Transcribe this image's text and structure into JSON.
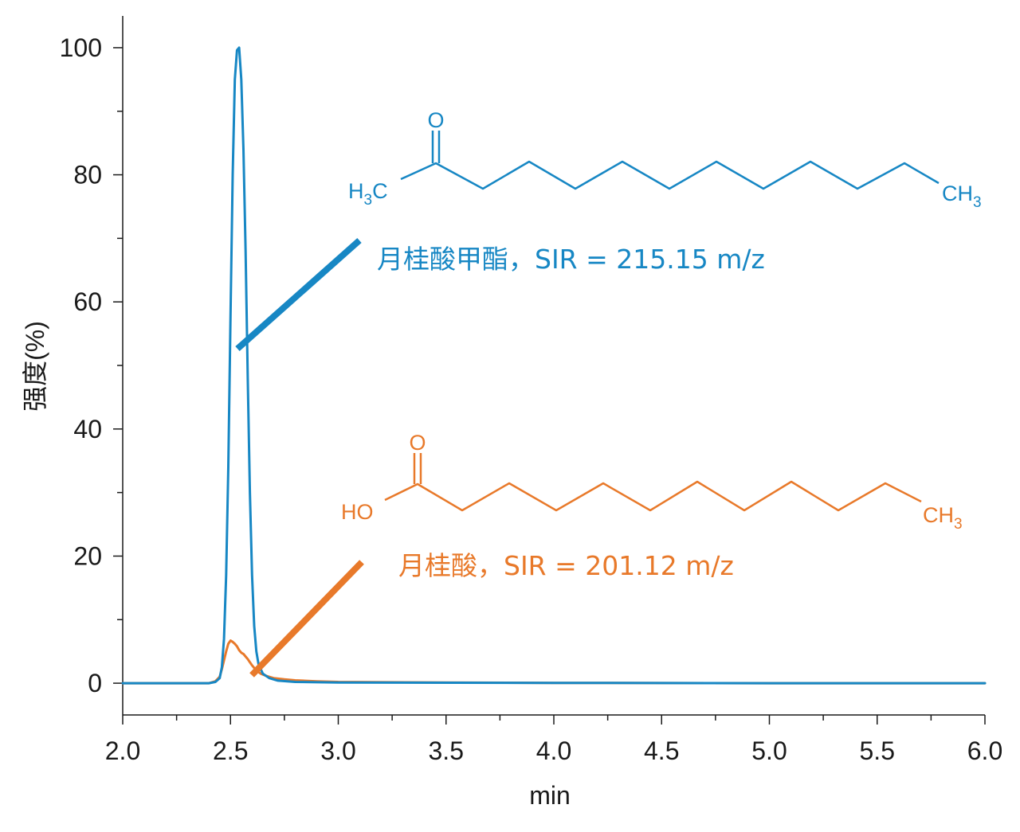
{
  "chart_data": {
    "type": "line",
    "xlabel": "min",
    "ylabel": "强度(%)",
    "xlim": [
      2.0,
      6.0
    ],
    "ylim": [
      -5,
      105
    ],
    "x_ticks": [
      "2.0",
      "2.5",
      "3.0",
      "3.5",
      "4.0",
      "4.5",
      "5.0",
      "5.5",
      "6.0"
    ],
    "y_ticks": [
      "0",
      "20",
      "40",
      "60",
      "80",
      "100"
    ],
    "x_tick_values": [
      2.0,
      2.5,
      3.0,
      3.5,
      4.0,
      4.5,
      5.0,
      5.5,
      6.0
    ],
    "y_tick_values": [
      0,
      20,
      40,
      60,
      80,
      100
    ],
    "grid": false,
    "series": [
      {
        "name": "月桂酸甲酯，SIR = 215.15 m/z",
        "color": "#1787c4",
        "x": [
          2.0,
          2.4,
          2.43,
          2.45,
          2.46,
          2.47,
          2.48,
          2.49,
          2.5,
          2.51,
          2.52,
          2.53,
          2.54,
          2.55,
          2.56,
          2.57,
          2.58,
          2.59,
          2.6,
          2.61,
          2.62,
          2.63,
          2.65,
          2.68,
          2.72,
          2.8,
          3.0,
          4.0,
          5.0,
          6.0
        ],
        "y": [
          0,
          0,
          0.2,
          0.8,
          2.5,
          7,
          17,
          34,
          58,
          80,
          95,
          99.6,
          100,
          95,
          84,
          68,
          48,
          30,
          17,
          9,
          5,
          3,
          1.5,
          0.8,
          0.4,
          0.2,
          0.1,
          0.05,
          0,
          0
        ]
      },
      {
        "name": "月桂酸，SIR = 201.12 m/z",
        "color": "#e8792a",
        "x": [
          2.0,
          2.4,
          2.43,
          2.45,
          2.46,
          2.47,
          2.48,
          2.49,
          2.5,
          2.51,
          2.52,
          2.53,
          2.54,
          2.55,
          2.56,
          2.57,
          2.58,
          2.59,
          2.6,
          2.62,
          2.64,
          2.67,
          2.7,
          2.75,
          2.8,
          2.9,
          3.0,
          3.5,
          4.0,
          5.0,
          6.0
        ],
        "y": [
          0,
          0,
          0.3,
          1,
          2.2,
          3.6,
          5,
          6.2,
          6.7,
          6.5,
          6.2,
          5.8,
          5.2,
          4.8,
          4.6,
          4.2,
          3.8,
          3.3,
          2.8,
          2.0,
          1.5,
          1.1,
          0.8,
          0.6,
          0.45,
          0.3,
          0.2,
          0.1,
          0.05,
          0,
          0
        ]
      }
    ],
    "annotations": [
      {
        "text": "月桂酸甲酯，SIR = 215.15 m/z",
        "color": "#1787c4"
      },
      {
        "text": "月桂酸，SIR = 201.12 m/z",
        "color": "#e8792a"
      }
    ]
  },
  "structures": {
    "ester": {
      "o_label": "O",
      "left_label": "H",
      "left_sub": "3",
      "left_tail": "C",
      "right_label": "CH",
      "right_sub": "3"
    },
    "acid": {
      "o_label": "O",
      "left_label": "HO",
      "right_label": "CH",
      "right_sub": "3"
    }
  }
}
